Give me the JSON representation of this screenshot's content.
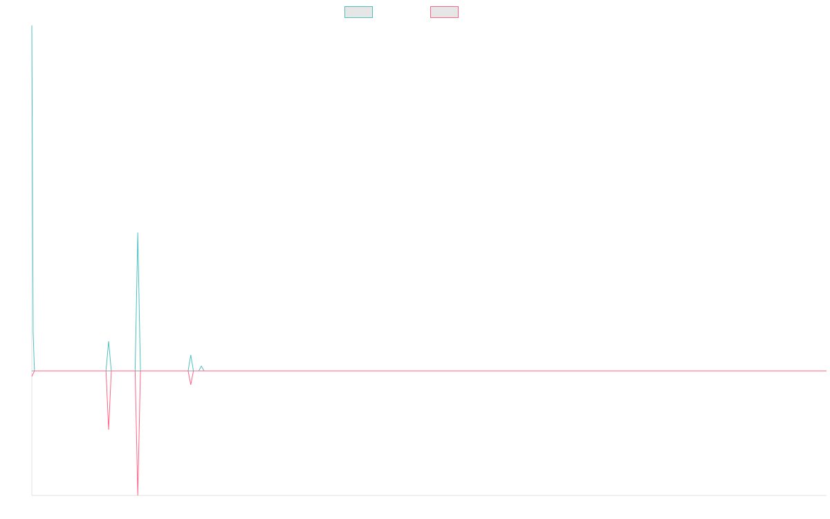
{
  "chart_data": {
    "type": "line",
    "xlim": [
      0,
      300
    ],
    "ylim": [
      -180,
      500
    ],
    "legend": "top",
    "series": [
      {
        "color": "#4bc0c0",
        "x": [
          0,
          0.5,
          1,
          28,
          29,
          30,
          39,
          40,
          41,
          59,
          60,
          61,
          63,
          64,
          65,
          300
        ],
        "values": [
          499,
          55,
          0,
          0,
          43,
          0,
          0,
          200,
          0,
          0,
          23,
          0,
          0,
          7,
          0,
          0
        ]
      },
      {
        "color": "#ff6384",
        "x": [
          0,
          1,
          28,
          29,
          30,
          39,
          40,
          41,
          59,
          60,
          61,
          300
        ],
        "values": [
          -8,
          0,
          0,
          -85,
          0,
          0,
          -180,
          0,
          0,
          -20,
          0,
          0
        ]
      }
    ]
  }
}
